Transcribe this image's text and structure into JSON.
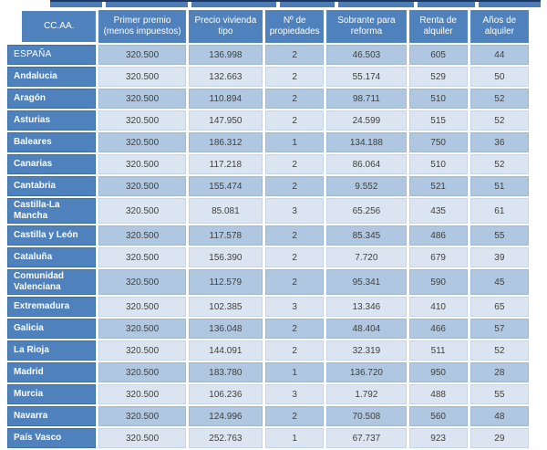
{
  "colors": {
    "header_bg": "#4f81bd",
    "region_col_bg": "#4f81bd",
    "row_stripe_dark": "#b0c7e1",
    "row_stripe_light": "#dbe5f1",
    "top_edge_line": "#1f3864",
    "header_text": "#ffffff",
    "cell_text": "#3f3f3f"
  },
  "chart_data": {
    "type": "table",
    "columns": [
      "CC.AA.",
      "Primer premio (menos impuestos)",
      "Precio vivienda tipo",
      "Nº de propiedades",
      "Sobrante para reforma",
      "Renta de alquiler",
      "Años de alquiler"
    ],
    "rows": [
      {
        "region": "ESPAÑA",
        "values": [
          "320.500",
          "136.998",
          "2",
          "46.503",
          "605",
          "44"
        ]
      },
      {
        "region": "Andalucia",
        "values": [
          "320.500",
          "132.663",
          "2",
          "55.174",
          "529",
          "50"
        ]
      },
      {
        "region": "Aragón",
        "values": [
          "320.500",
          "110.894",
          "2",
          "98.711",
          "510",
          "52"
        ]
      },
      {
        "region": "Asturias",
        "values": [
          "320.500",
          "147.950",
          "2",
          "24.599",
          "515",
          "52"
        ]
      },
      {
        "region": "Baleares",
        "values": [
          "320.500",
          "186.312",
          "1",
          "134.188",
          "750",
          "36"
        ]
      },
      {
        "region": "Canarias",
        "values": [
          "320.500",
          "117.218",
          "2",
          "86.064",
          "510",
          "52"
        ]
      },
      {
        "region": "Cantabria",
        "values": [
          "320.500",
          "155.474",
          "2",
          "9.552",
          "521",
          "51"
        ]
      },
      {
        "region": "Castilla-La Mancha",
        "values": [
          "320.500",
          "85.081",
          "3",
          "65.256",
          "435",
          "61"
        ]
      },
      {
        "region": "Castilla y León",
        "values": [
          "320.500",
          "117.578",
          "2",
          "85.345",
          "486",
          "55"
        ]
      },
      {
        "region": "Cataluña",
        "values": [
          "320.500",
          "156.390",
          "2",
          "7.720",
          "679",
          "39"
        ]
      },
      {
        "region": "Comunidad Valenciana",
        "values": [
          "320.500",
          "112.579",
          "2",
          "95.341",
          "590",
          "45"
        ]
      },
      {
        "region": "Extremadura",
        "values": [
          "320.500",
          "102.385",
          "3",
          "13.346",
          "410",
          "65"
        ]
      },
      {
        "region": "Galicia",
        "values": [
          "320.500",
          "136.048",
          "2",
          "48.404",
          "466",
          "57"
        ]
      },
      {
        "region": "La Rioja",
        "values": [
          "320.500",
          "144.091",
          "2",
          "32.319",
          "511",
          "52"
        ]
      },
      {
        "region": "Madrid",
        "values": [
          "320.500",
          "183.780",
          "1",
          "136.720",
          "950",
          "28"
        ]
      },
      {
        "region": "Murcia",
        "values": [
          "320.500",
          "106.236",
          "3",
          "1.792",
          "488",
          "55"
        ]
      },
      {
        "region": "Navarra",
        "values": [
          "320.500",
          "124.996",
          "2",
          "70.508",
          "560",
          "48"
        ]
      },
      {
        "region": "País Vasco",
        "values": [
          "320.500",
          "252.763",
          "1",
          "67.737",
          "923",
          "29"
        ]
      }
    ]
  }
}
